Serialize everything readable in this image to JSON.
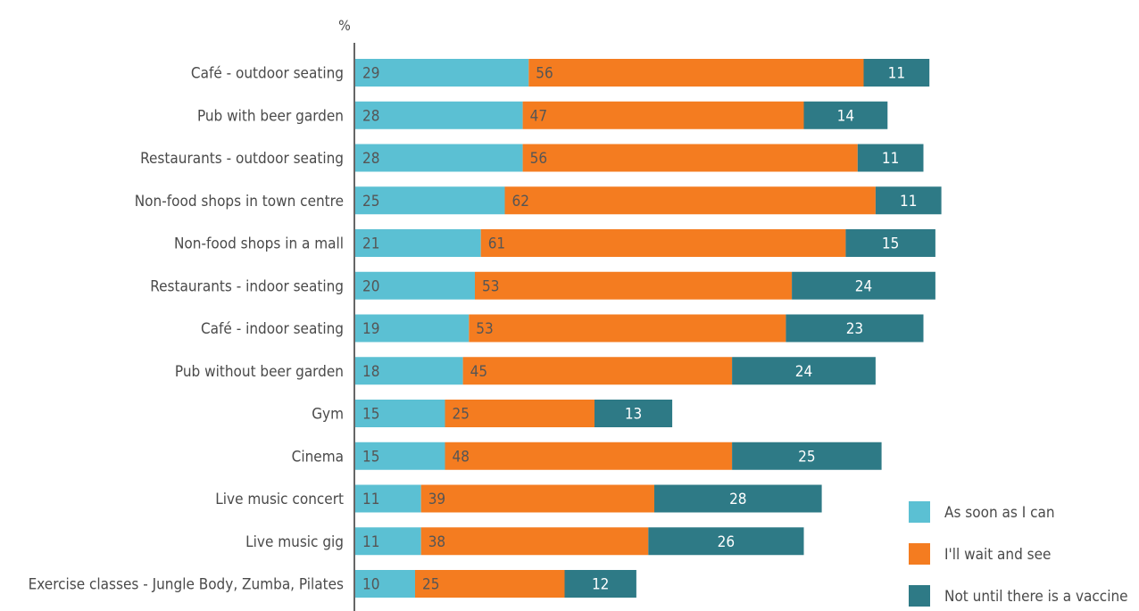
{
  "chart_data": {
    "type": "bar",
    "orientation": "horizontal",
    "stacked": true,
    "unit_label": "%",
    "categories": [
      "Café - outdoor seating",
      "Pub with beer garden",
      "Restaurants - outdoor seating",
      "Non-food shops in town centre",
      "Non-food shops in a mall",
      "Restaurants - indoor seating",
      "Café - indoor seating",
      "Pub without beer garden",
      "Gym",
      "Cinema",
      "Live music concert",
      "Live music gig",
      "Exercise classes - Jungle Body, Zumba, Pilates"
    ],
    "series": [
      {
        "name": "As soon as I can",
        "color": "#5bc0d3",
        "values": [
          29,
          28,
          28,
          25,
          21,
          20,
          19,
          18,
          15,
          15,
          11,
          11,
          10
        ]
      },
      {
        "name": "I'll wait and see",
        "color": "#f47c20",
        "values": [
          56,
          47,
          56,
          62,
          61,
          53,
          53,
          45,
          25,
          48,
          39,
          38,
          25
        ]
      },
      {
        "name": "Not until there is a vaccine",
        "color": "#2e7a86",
        "values": [
          11,
          14,
          11,
          11,
          15,
          24,
          23,
          24,
          13,
          25,
          28,
          26,
          12
        ]
      }
    ],
    "legend_position": "bottom-right",
    "grid": false
  }
}
